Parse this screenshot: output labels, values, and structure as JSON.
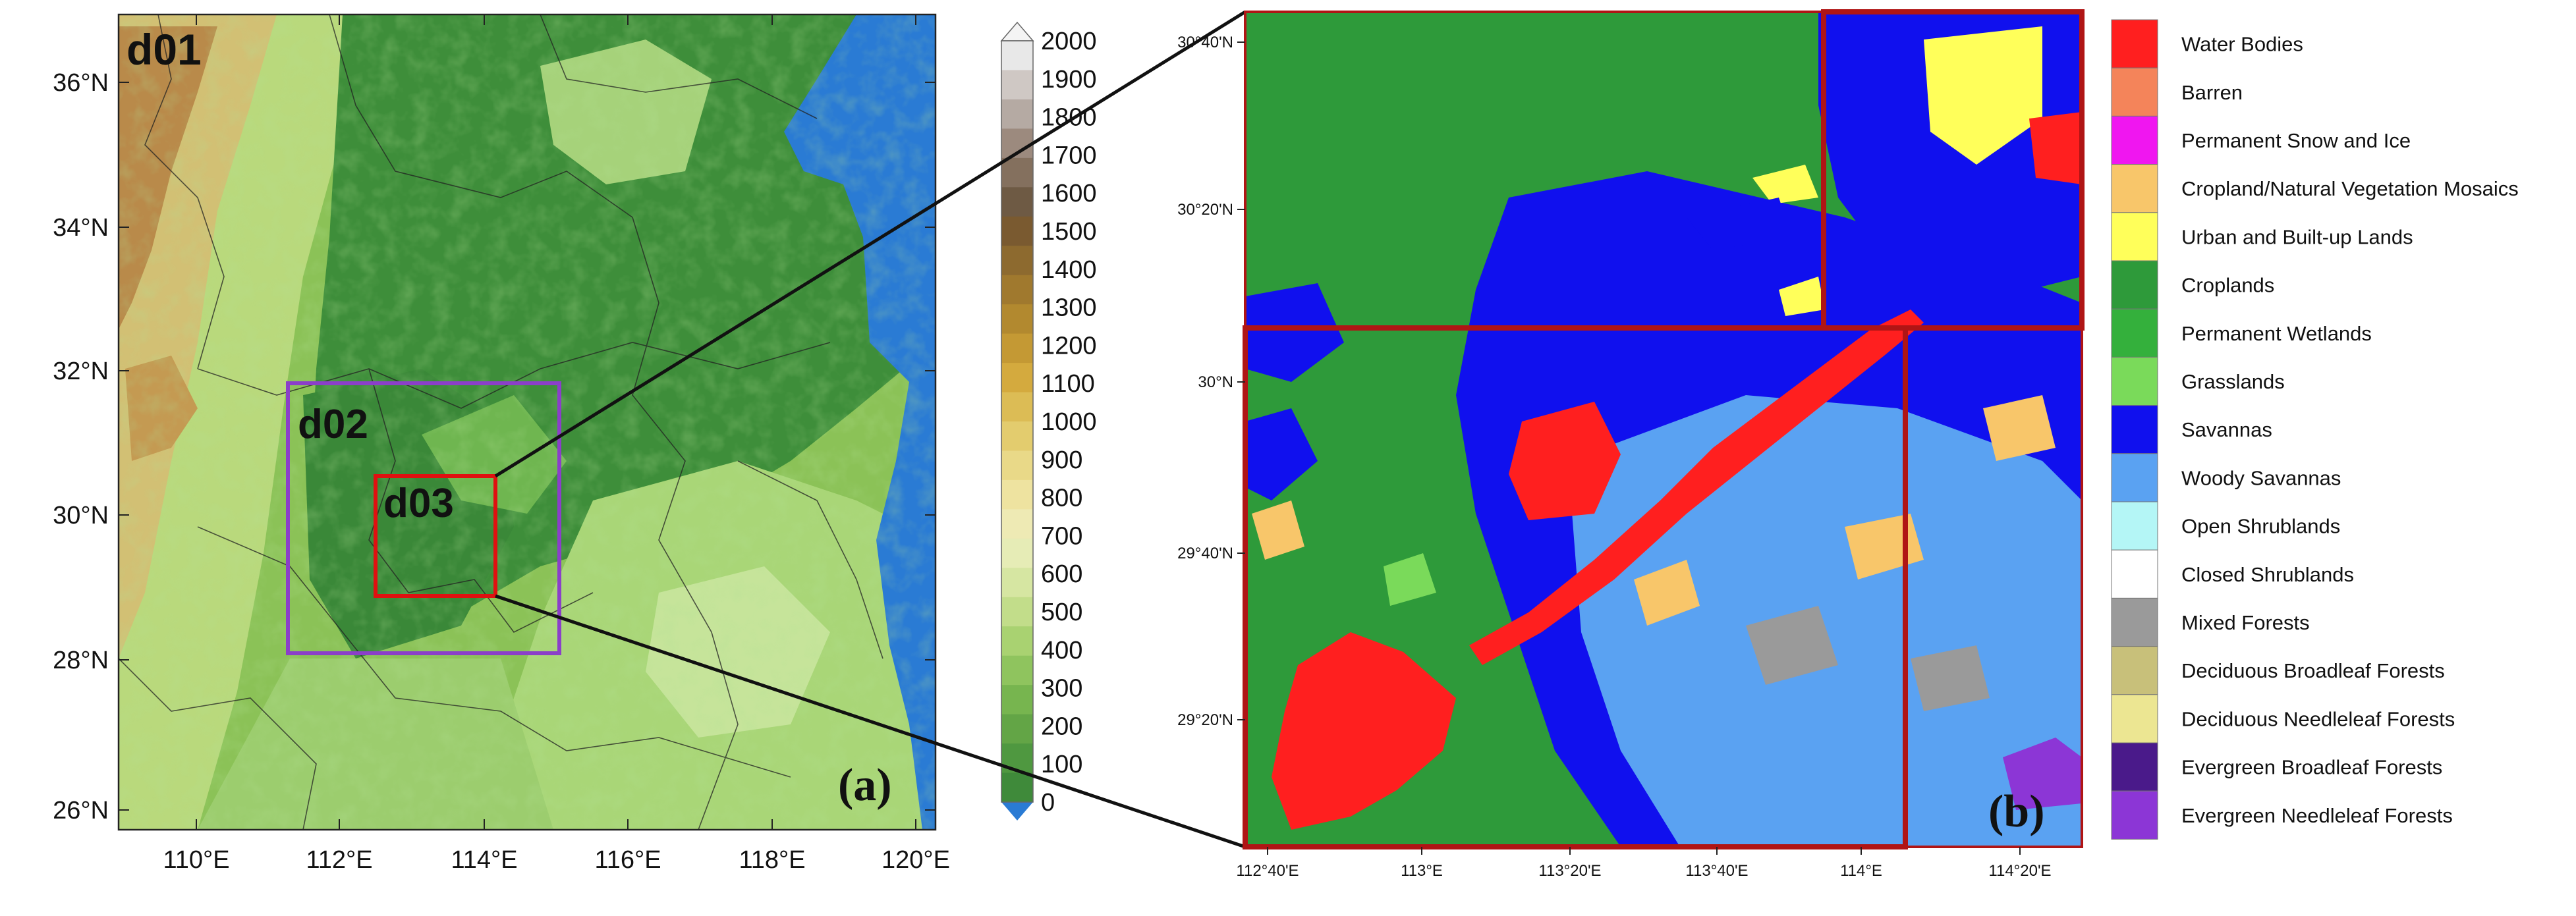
{
  "panel_a": {
    "domain_label": "d01",
    "nest_d02": "d02",
    "nest_d03": "d03",
    "panel_tag": "(a)",
    "lat_labels": [
      "36°N",
      "34°N",
      "32°N",
      "30°N",
      "28°N",
      "26°N"
    ],
    "lon_labels": [
      "110°E",
      "112°E",
      "114°E",
      "116°E",
      "118°E",
      "120°E"
    ],
    "colors": {
      "sea": "#2a7bd4",
      "lowland": "#3f8f3c",
      "plain": "#4a9a3f",
      "mid": "#7cc04a",
      "hill": "#b8dc7a",
      "high": "#c8a24a",
      "peak": "#8a5a2a",
      "d02_box": "#8b3fc9",
      "d03_box": "#e01010"
    }
  },
  "elevation_colorbar": {
    "ticks": [
      "2000",
      "1900",
      "1800",
      "1700",
      "1600",
      "1500",
      "1400",
      "1300",
      "1200",
      "1100",
      "1000",
      "900",
      "800",
      "700",
      "600",
      "500",
      "400",
      "300",
      "200",
      "100",
      "0"
    ],
    "colors_top_to_bottom": [
      "#e8e8e8",
      "#cfc8c4",
      "#b5aaa3",
      "#9c8a7e",
      "#84705e",
      "#6e5a44",
      "#7a5a30",
      "#8d6a2f",
      "#a0792e",
      "#b2892f",
      "#c49934",
      "#d4aa3e",
      "#dcbc55",
      "#e3cc6e",
      "#e9d988",
      "#eee3a0",
      "#eeeab4",
      "#e6ecb6",
      "#d6e6a2",
      "#c2dd8a",
      "#a9d271",
      "#8fc45e",
      "#77b54f",
      "#63a546",
      "#4f9840",
      "#3f8a3a"
    ]
  },
  "panel_b": {
    "panel_tag": "(b)",
    "lat_labels": [
      "30°40'N",
      "30°20'N",
      "30°N",
      "29°40'N",
      "29°20'N"
    ],
    "lon_labels": [
      "112°40'E",
      "113°E",
      "113°20'E",
      "113°40'E",
      "114°E",
      "114°20'E"
    ],
    "border_color": "#b01515"
  },
  "landcover_legend": [
    {
      "label": "Water Bodies",
      "color": "#ff1f1f"
    },
    {
      "label": "Barren",
      "color": "#f4845a"
    },
    {
      "label": "Permanent Snow and Ice",
      "color": "#f016f0"
    },
    {
      "label": "Cropland/Natural Vegetation Mosaics",
      "color": "#f8c66a"
    },
    {
      "label": "Urban and Built-up Lands",
      "color": "#ffff5a"
    },
    {
      "label": "Croplands",
      "color": "#2e9a3a"
    },
    {
      "label": "Permanent Wetlands",
      "color": "#34b03c"
    },
    {
      "label": "Grasslands",
      "color": "#7ada5a"
    },
    {
      "label": "Savannas",
      "color": "#1010ee"
    },
    {
      "label": "Woody Savannas",
      "color": "#5aa2f2"
    },
    {
      "label": "Open Shrublands",
      "color": "#b4f6f6"
    },
    {
      "label": "Closed Shrublands",
      "color": "#ffffff"
    },
    {
      "label": "Mixed Forests",
      "color": "#9a9a9a"
    },
    {
      "label": "Deciduous Broadleaf Forests",
      "color": "#c8c07a"
    },
    {
      "label": "Deciduous Needleleaf Forests",
      "color": "#ece692"
    },
    {
      "label": "Evergreen Broadleaf Forests",
      "color": "#4a1a8a"
    },
    {
      "label": "Evergreen Needleleaf Forests",
      "color": "#8c36d6"
    }
  ]
}
